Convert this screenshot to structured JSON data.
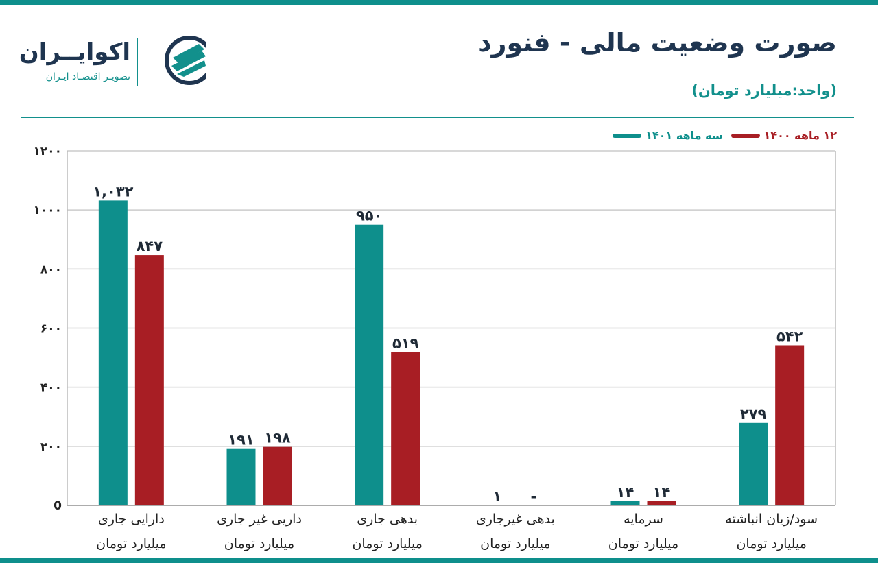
{
  "header": {
    "title": "صورت وضعیت مالی - فنورد",
    "subtitle": "(واحد:میلیارد تومان)"
  },
  "brand": {
    "name": "اکوایــران",
    "tagline": "تصویـر اقتصـاد ایـران",
    "icon": "ecoiran-logo-icon"
  },
  "colors": {
    "teal": "#0e8f8c",
    "red": "#a81e24",
    "navy": "#1f3550",
    "grid": "#cccccc"
  },
  "chart_data": {
    "type": "bar",
    "title": "صورت وضعیت مالی - فنورد",
    "ylabel": "",
    "xlabel": "",
    "ylim": [
      0,
      1200
    ],
    "yticks": [
      0,
      200,
      400,
      600,
      800,
      1000,
      1200
    ],
    "ytick_labels": [
      "0",
      "۲۰۰",
      "۴۰۰",
      "۶۰۰",
      "۸۰۰",
      "۱۰۰۰",
      "۱۲۰۰"
    ],
    "grid": true,
    "legend_position": "top-right",
    "categories": [
      "دارایی جاری",
      "داریی غیر جاری",
      "بدهی جاری",
      "بدهی غیرجاری",
      "سرمایه",
      "سود/زیان انباشته"
    ],
    "category_unit": "میلیارد تومان",
    "series": [
      {
        "name": "سه ماهه ۱۴۰۱",
        "color": "#0e8f8c",
        "values": [
          1032,
          191,
          950,
          1,
          14,
          279
        ],
        "labels": [
          "۱,۰۳۲",
          "۱۹۱",
          "۹۵۰",
          "۱",
          "۱۴",
          "۲۷۹"
        ]
      },
      {
        "name": "۱۲ ماهه ۱۴۰۰",
        "color": "#a81e24",
        "values": [
          847,
          198,
          519,
          0,
          14,
          542
        ],
        "labels": [
          "۸۴۷",
          "۱۹۸",
          "۵۱۹",
          "-",
          "۱۴",
          "۵۴۲"
        ]
      }
    ]
  }
}
